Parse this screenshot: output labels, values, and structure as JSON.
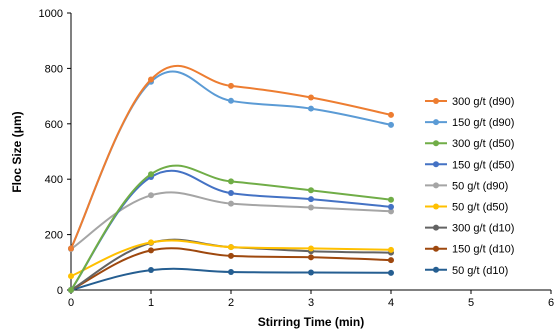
{
  "chart_data": {
    "type": "line",
    "xlabel": "Stirring Time (min)",
    "ylabel": "Floc  Size (μm)",
    "xlim": [
      0,
      6
    ],
    "ylim": [
      0,
      1000
    ],
    "xticks": [
      "0",
      "1",
      "2",
      "3",
      "4",
      "5",
      "6"
    ],
    "yticks": [
      "0",
      "200",
      "400",
      "600",
      "800",
      "1000"
    ],
    "grid": false,
    "legend_position": "right",
    "x": [
      0,
      1,
      2,
      3,
      4
    ],
    "series": [
      {
        "name": "300 g/t (d90)",
        "color": "#ED7D31",
        "values": [
          150,
          760,
          737,
          695,
          632
        ]
      },
      {
        "name": "150 g/t (d90)",
        "color": "#5B9BD5",
        "values": [
          150,
          752,
          683,
          655,
          596
        ]
      },
      {
        "name": "300 g/t (d50)",
        "color": "#70AD47",
        "values": [
          0,
          418,
          392,
          360,
          326
        ]
      },
      {
        "name": "150 g/t (d50)",
        "color": "#4472C4",
        "values": [
          0,
          408,
          350,
          328,
          300
        ]
      },
      {
        "name": "50 g/t (d90)",
        "color": "#A5A5A5",
        "values": [
          148,
          342,
          312,
          298,
          284
        ]
      },
      {
        "name": "50 g/t (d50)",
        "color": "#FFC000",
        "values": [
          50,
          172,
          155,
          150,
          145
        ]
      },
      {
        "name": "300 g/t (d10)",
        "color": "#636363",
        "values": [
          0,
          170,
          155,
          140,
          135
        ]
      },
      {
        "name": "150 g/t (d10)",
        "color": "#9E480E",
        "values": [
          0,
          143,
          123,
          118,
          108
        ]
      },
      {
        "name": "50 g/t (d10)",
        "color": "#255E91",
        "values": [
          0,
          72,
          65,
          63,
          62
        ]
      }
    ]
  }
}
